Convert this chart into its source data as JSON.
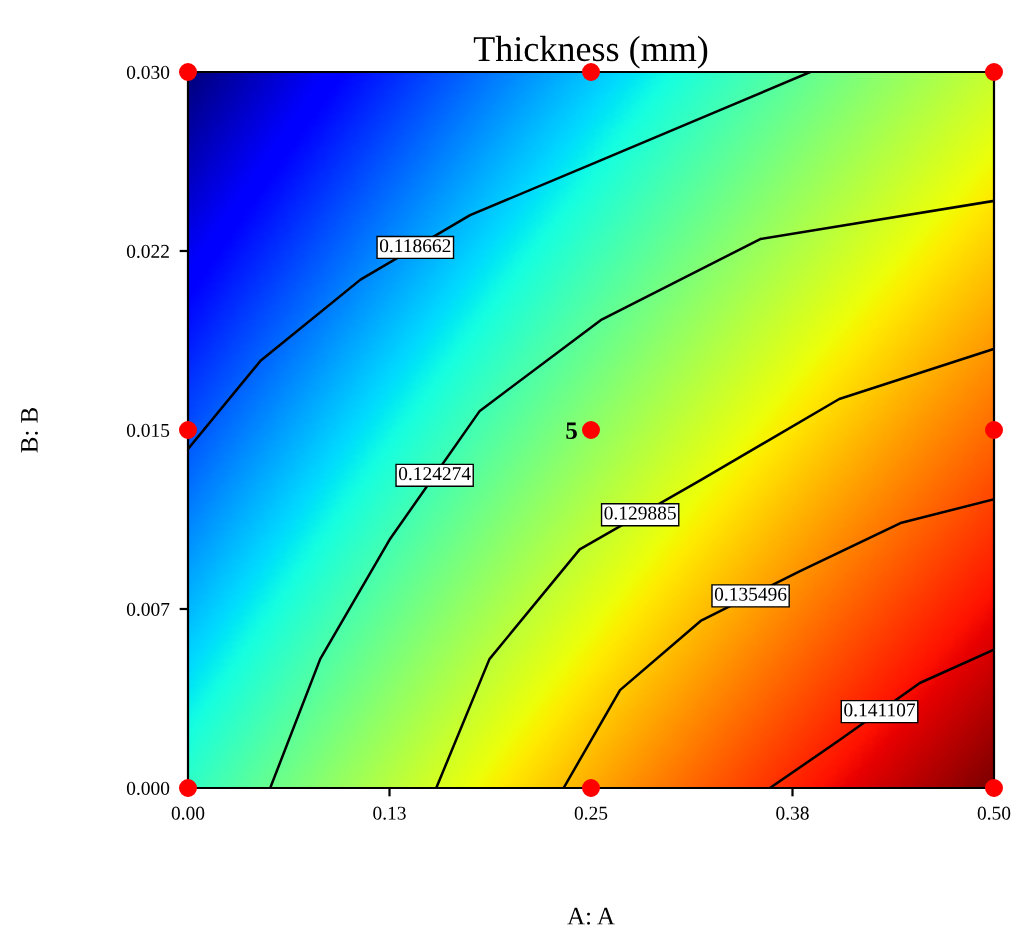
{
  "chart_data": {
    "type": "line",
    "title": "Thickness (mm)",
    "xlabel": "A: A",
    "ylabel": "B: B",
    "xlim": [
      0,
      0.5
    ],
    "ylim": [
      0,
      0.03
    ],
    "xticks": [
      {
        "value": 0,
        "label": "0.00"
      },
      {
        "value": 0.125,
        "label": "0.13"
      },
      {
        "value": 0.25,
        "label": "0.25"
      },
      {
        "value": 0.375,
        "label": "0.38"
      },
      {
        "value": 0.5,
        "label": "0.50"
      }
    ],
    "yticks": [
      {
        "value": 0,
        "label": "0.000"
      },
      {
        "value": 0.0075,
        "label": "0.007"
      },
      {
        "value": 0.015,
        "label": "0.015"
      },
      {
        "value": 0.0225,
        "label": "0.022"
      },
      {
        "value": 0.03,
        "label": "0.030"
      }
    ],
    "grid": false,
    "legend": false,
    "line_style": "solid",
    "series": [
      {
        "name": "0.118662",
        "color": "#000000",
        "x": [
          0,
          0.045,
          0.107,
          0.175,
          0.256,
          0.33,
          0.386
        ],
        "values": [
          0.0142,
          0.0179,
          0.0213,
          0.024,
          0.0263,
          0.0284,
          0.03
        ]
      },
      {
        "name": "0.124274",
        "color": "#000000",
        "x": [
          0.051,
          0.082,
          0.125,
          0.181,
          0.256,
          0.355,
          0.5
        ],
        "values": [
          0,
          0.0054,
          0.0104,
          0.0158,
          0.0196,
          0.023,
          0.0246
        ]
      },
      {
        "name": "0.129885",
        "color": "#000000",
        "x": [
          0.154,
          0.187,
          0.243,
          0.318,
          0.404,
          0.5
        ],
        "values": [
          0,
          0.0054,
          0.01,
          0.0129,
          0.0163,
          0.0184
        ]
      },
      {
        "name": "0.135496",
        "color": "#000000",
        "x": [
          0.233,
          0.268,
          0.318,
          0.38,
          0.442,
          0.5
        ],
        "values": [
          0,
          0.0041,
          0.007,
          0.0091,
          0.0111,
          0.0121
        ]
      },
      {
        "name": "0.141107",
        "color": "#000000",
        "x": [
          0.361,
          0.404,
          0.454,
          0.5
        ],
        "values": [
          0,
          0.002,
          0.0044,
          0.0058
        ]
      },
      {
        "type": "scatter",
        "marker": "circle",
        "color": "#ff0000",
        "x": [
          0,
          0.25,
          0.5,
          0,
          0.25,
          0.5,
          0,
          0.25,
          0.5
        ],
        "values": [
          0,
          0,
          0,
          0.015,
          0.015,
          0.015,
          0.03,
          0.03,
          0.03
        ]
      }
    ],
    "annotations": [
      {
        "text": "5",
        "x": 0.25,
        "y": 0.015
      }
    ]
  }
}
